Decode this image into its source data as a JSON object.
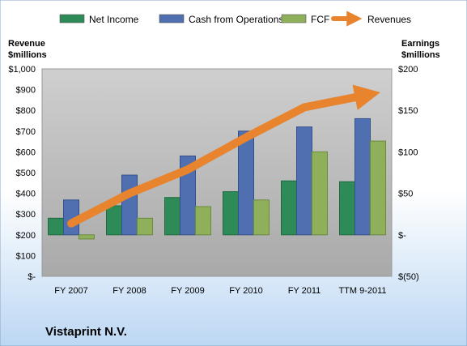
{
  "colors": {
    "net_income": "#2e8b57",
    "cash_ops": "#4f6fb0",
    "fcf": "#8fb05a",
    "revenues": "#e8832e",
    "plot_bg": "#bdbdbd",
    "page_bg_top": "#ffffff",
    "page_bg_bottom": "#bcd7f3"
  },
  "chart_data": {
    "type": "bar",
    "categories": [
      "FY 2007",
      "FY 2008",
      "FY 2009",
      "FY 2010",
      "FY 2011",
      "TTM 9-2011"
    ],
    "series": [
      {
        "name": "Net Income",
        "axis": "right",
        "values": [
          20,
          35,
          45,
          52,
          65,
          64
        ]
      },
      {
        "name": "Cash from Operations",
        "axis": "right",
        "values": [
          42,
          72,
          95,
          125,
          130,
          140
        ]
      },
      {
        "name": "FCF",
        "axis": "right",
        "values": [
          -5,
          20,
          34,
          42,
          100,
          113
        ]
      },
      {
        "name": "Revenues",
        "axis": "left",
        "type": "line",
        "values": [
          255,
          400,
          515,
          670,
          815,
          870
        ]
      }
    ],
    "left_axis": {
      "label_line1": "Revenue",
      "label_line2": "$millions",
      "min": 0,
      "max": 1000,
      "ticks": [
        "$-",
        "$100",
        "$200",
        "$300",
        "$400",
        "$500",
        "$600",
        "$700",
        "$800",
        "$900",
        "$1,000"
      ]
    },
    "right_axis": {
      "label_line1": "Earnings",
      "label_line2": "$millions",
      "min": -50,
      "max": 200,
      "ticks": [
        "$(50)",
        "$-",
        "$50",
        "$100",
        "$150",
        "$200"
      ]
    },
    "legend_position": "top",
    "grid": false
  },
  "company_name": "Vistaprint N.V."
}
